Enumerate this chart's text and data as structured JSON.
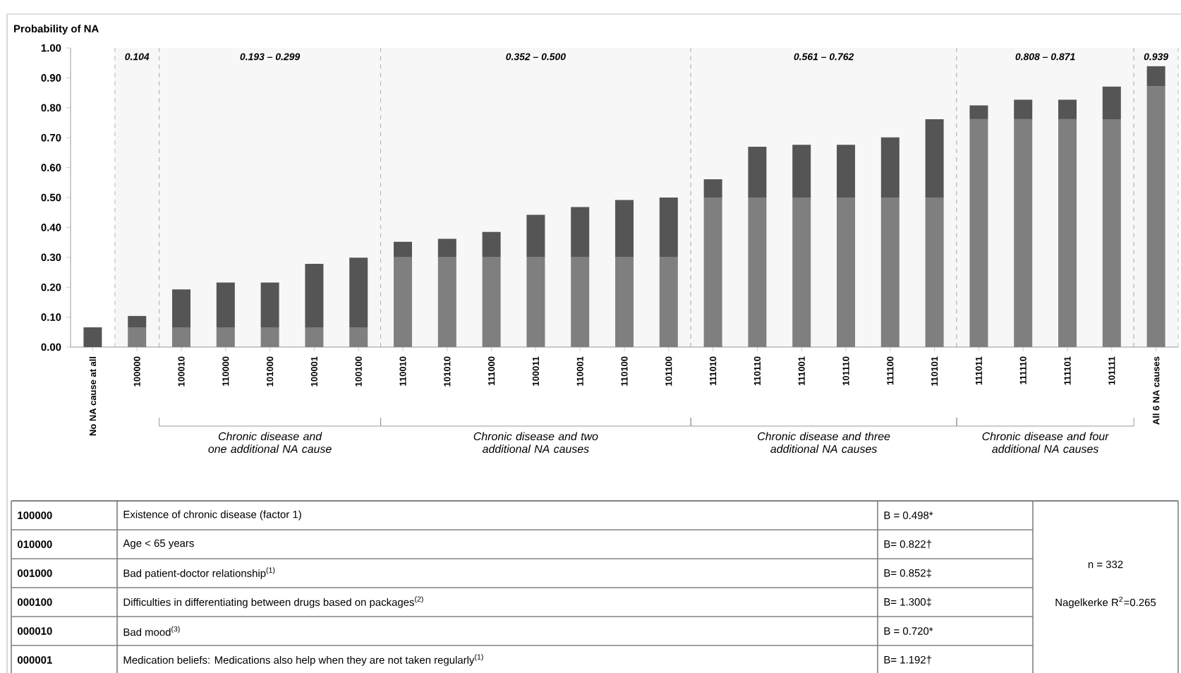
{
  "chart_data": {
    "type": "bar",
    "stacked": true,
    "ylabel": "Probability of NA",
    "categories": [
      "No NA cause at all",
      "100000",
      "100010",
      "110000",
      "101000",
      "100001",
      "100100",
      "110010",
      "101010",
      "111000",
      "100011",
      "110001",
      "110100",
      "101100",
      "111010",
      "110110",
      "111001",
      "101110",
      "111100",
      "110101",
      "111011",
      "111110",
      "111101",
      "101111",
      "All 6 NA causes"
    ],
    "series": [
      {
        "color": "#7f7f7f",
        "values": [
          0,
          0.066,
          0.066,
          0.066,
          0.066,
          0.066,
          0.066,
          0.3,
          0.3,
          0.3,
          0.3,
          0.3,
          0.3,
          0.3,
          0.5,
          0.5,
          0.5,
          0.5,
          0.5,
          0.5,
          0.762,
          0.762,
          0.762,
          0.762,
          0.871
        ]
      },
      {
        "color": "#555555",
        "values": [
          0.066,
          0.038,
          0.127,
          0.15,
          0.15,
          0.212,
          0.233,
          0.052,
          0.062,
          0.085,
          0.142,
          0.168,
          0.192,
          0.2,
          0.061,
          0.17,
          0.176,
          0.176,
          0.201,
          0.262,
          0.046,
          0.065,
          0.065,
          0.109,
          0.068
        ]
      }
    ],
    "ylim": [
      0,
      1
    ],
    "yticks": [
      {
        "value": 0,
        "label": "0.00"
      },
      {
        "value": 0.1,
        "label": "0.10"
      },
      {
        "value": 0.2,
        "label": "0.20"
      },
      {
        "value": 0.3,
        "label": "0.30"
      },
      {
        "value": 0.4,
        "label": "0.40"
      },
      {
        "value": 0.5,
        "label": "0.50"
      },
      {
        "value": 0.6,
        "label": "0.60"
      },
      {
        "value": 0.7,
        "label": "0.70"
      },
      {
        "value": 0.8,
        "label": "0.80"
      },
      {
        "value": 0.9,
        "label": "0.90"
      },
      {
        "value": 1,
        "label": "1.00"
      }
    ],
    "bands": [
      {
        "axis": "x",
        "from": "100000",
        "to": "100000",
        "label": "0.104",
        "color": "#f7f7f7"
      },
      {
        "axis": "x",
        "from": "100010",
        "to": "100100",
        "label": "0.193 – 0.299",
        "color": "#f7f7f7"
      },
      {
        "axis": "x",
        "from": "110010",
        "to": "101100",
        "label": "0.352 – 0.500",
        "color": "#f7f7f7"
      },
      {
        "axis": "x",
        "from": "111010",
        "to": "110101",
        "label": "0.561 – 0.762",
        "color": "#f7f7f7"
      },
      {
        "axis": "x",
        "from": "111011",
        "to": "101111",
        "label": "0.808 – 0.871",
        "color": "#f7f7f7"
      },
      {
        "axis": "x",
        "from": "All 6 NA causes",
        "to": "All 6 NA causes",
        "label": "0.939",
        "color": "#f7f7f7"
      }
    ],
    "annotations": [
      "Chronic disease and one additional NA cause",
      "Chronic disease and two additional NA causes",
      "Chronic disease and three additional NA causes",
      "Chronic disease and four additional NA causes",
      "100000",
      "Existence of chronic disease (factor 1)",
      "B = 0.498*",
      "010000",
      "Age < 65 years",
      "B= 0.822†",
      "001000",
      "Bad patient-doctor relationship$^{(1)}$",
      "B= 0.852‡",
      "000100",
      "Difficulties in differentiating between drugs based on packages$^{(2)}$",
      "B= 1.300‡",
      "000010",
      "Bad mood$^{(3)}$",
      "B = 0.720*",
      "000001",
      "Medication beliefs: Medications also help when they are not taken regularly$^{(1)}$",
      "B= 1.192†",
      "n = 332",
      "Nagelkerke R$^{2}$=0.265"
    ]
  }
}
